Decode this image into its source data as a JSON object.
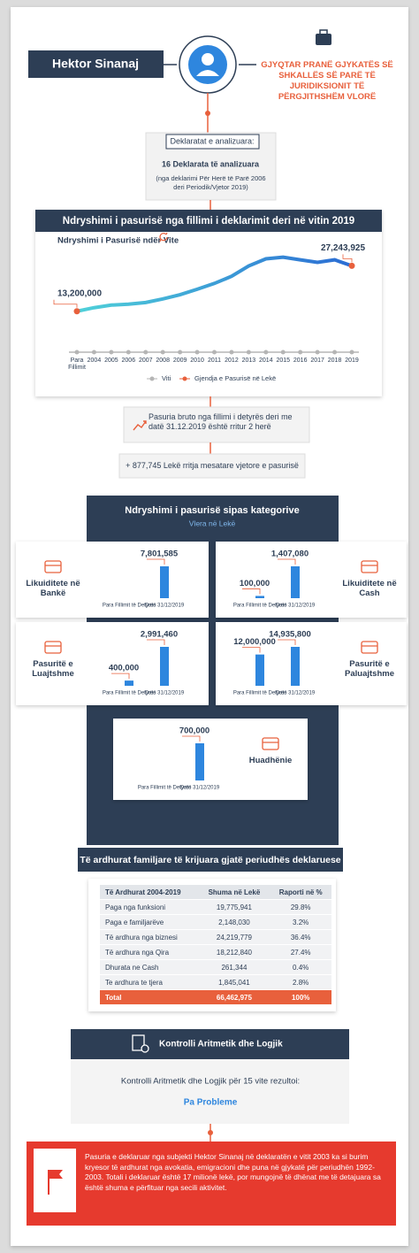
{
  "header": {
    "name": "Hektor Sinanaj",
    "position": "GJYQTAR PRANË GJYKATËS SË SHKALLËS SË PARË TË JURIDIKSIONIT TË PËRGJITHSHËM VLORË"
  },
  "declarations": {
    "title": "Deklaratat e analizuara:",
    "count": "16 Deklarata të analizuara",
    "note": "(nga deklarimi Për Herë të Parë 2006 deri Periodik/Vjetor 2019)"
  },
  "chart_data": [
    {
      "type": "line",
      "title": "Ndryshimi i pasurisë nga fillimi i deklarimit deri në vitin 2019",
      "subtitle": "Ndryshimi i Pasurisë ndër Vite",
      "x_label": "Viti",
      "categories": [
        "Para Fillimit",
        "2004",
        "2005",
        "2006",
        "2007",
        "2008",
        "2009",
        "2010",
        "2011",
        "2012",
        "2013",
        "2014",
        "2015",
        "2016",
        "2017",
        "2018",
        "2019"
      ],
      "series": [
        {
          "name": "Gjendja e Pasurisë në Lekë",
          "color": "#e8603c",
          "line_colors": [
            "#4fd1d9",
            "#2b6cd4"
          ],
          "values": [
            13200000,
            14300000,
            15100000,
            15400000,
            15900000,
            17000000,
            18300000,
            20000000,
            21800000,
            24000000,
            27200000,
            29400000,
            29900000,
            29100000,
            28300000,
            29100000,
            27243925
          ],
          "value_labels": [
            "13,200,000",
            null,
            null,
            null,
            null,
            null,
            null,
            null,
            null,
            null,
            null,
            null,
            null,
            null,
            null,
            null,
            "27,243,925"
          ]
        }
      ],
      "ylim": [
        0,
        32000000
      ],
      "axis_color": "#b5b5b5"
    },
    {
      "type": "bar",
      "title": "Likuiditete në Bankë",
      "categories": [
        "Para Fillimit të Detyrës",
        "Datë 31/12/2019"
      ],
      "values": [
        0,
        7801585
      ],
      "value_labels": [
        null,
        "7,801,585"
      ],
      "color": "#2e86de"
    },
    {
      "type": "bar",
      "title": "Likuiditete në Cash",
      "categories": [
        "Para Fillimit të Detyrës",
        "Datë 31/12/2019"
      ],
      "values": [
        100000,
        1407080
      ],
      "value_labels": [
        "100,000",
        "1,407,080"
      ],
      "color": "#2e86de"
    },
    {
      "type": "bar",
      "title": "Pasuritë e Luajtshme",
      "categories": [
        "Para Fillimit të Detyrës",
        "Datë 31/12/2019"
      ],
      "values": [
        400000,
        2991460
      ],
      "value_labels": [
        "400,000",
        "2,991,460"
      ],
      "color": "#2e86de"
    },
    {
      "type": "bar",
      "title": "Pasuritë e Paluajtshme",
      "categories": [
        "Para Fillimit të Detyrës",
        "Datë 31/12/2019"
      ],
      "values": [
        12000000,
        14935800
      ],
      "value_labels": [
        "12,000,000",
        "14,935,800"
      ],
      "color": "#2e86de"
    },
    {
      "type": "bar",
      "title": "Huadhënie",
      "categories": [
        "Para Fillimit të Detyrës",
        "Datë 31/12/2019"
      ],
      "values": [
        0,
        700000
      ],
      "value_labels": [
        null,
        "700,000"
      ],
      "color": "#2e86de"
    }
  ],
  "facts": [
    "Pasuria bruto nga fillimi i detyrës deri me datë 31.12.2019 është rritur 2 herë",
    "+ 877,745 Lekë rritja mesatare vjetore e pasurisë"
  ],
  "categories_section": {
    "title": "Ndryshimi i pasurisë sipas kategorive",
    "subtitle": "Vlera në Lekë"
  },
  "income": {
    "title": "Të ardhurat familjare të krijuara gjatë periudhës deklaruese",
    "header": [
      "Të Ardhurat 2004-2019",
      "Shuma në Lekë",
      "Raporti në %"
    ],
    "rows": [
      [
        "Paga nga funksioni",
        "19,775,941",
        "29.8%"
      ],
      [
        "Paga e familjarëve",
        "2,148,030",
        "3.2%"
      ],
      [
        "Të ardhura nga biznesi",
        "24,219,779",
        "36.4%"
      ],
      [
        "Të ardhura nga Qira",
        "18,212,840",
        "27.4%"
      ],
      [
        "Dhurata ne Cash",
        "261,344",
        "0.4%"
      ],
      [
        "Te ardhura te tjera",
        "1,845,041",
        "2.8%"
      ],
      [
        "Total",
        "66,462,975",
        "100%"
      ]
    ]
  },
  "control": {
    "title": "Kontrolli Aritmetik dhe Logjik",
    "text": "Kontrolli Aritmetik dhe Logjik për 15 vite rezultoi:",
    "result": "Pa Probleme"
  },
  "note": "Pasuria e deklaruar nga subjekti Hektor Sinanaj në deklaratën e vitit 2003 ka si burim kryesor të ardhurat nga avokatia, emigracioni dhe puna në gjykatë për periudhën 1992-2003. Totali i deklaruar është 17 milionë lekë, por mungojnë të dhënat me të detajuara sa është shuma e përfituar nga secili aktivitet."
}
